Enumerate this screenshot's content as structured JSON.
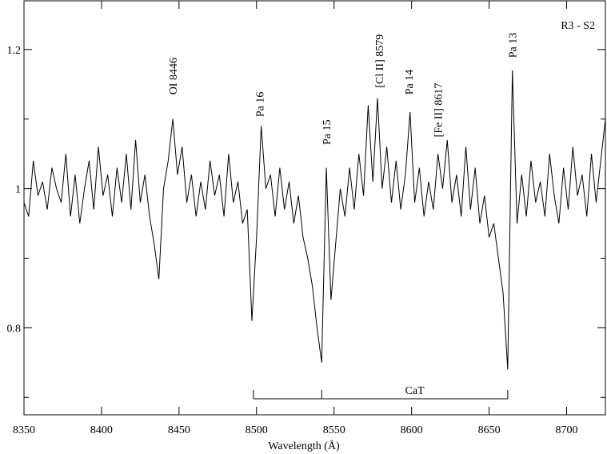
{
  "chart_data": {
    "type": "line",
    "xlabel": "Wavelength  (Å)",
    "corner_label": "R3 - S2",
    "x": [
      8350,
      8353,
      8356,
      8359,
      8362,
      8365,
      8368,
      8371,
      8374,
      8377,
      8380,
      8383,
      8386,
      8389,
      8392,
      8395,
      8398,
      8401,
      8404,
      8407,
      8410,
      8413,
      8416,
      8419,
      8422,
      8425,
      8428,
      8431,
      8434,
      8437,
      8440,
      8443,
      8446,
      8449,
      8452,
      8455,
      8458,
      8461,
      8464,
      8467,
      8470,
      8473,
      8476,
      8479,
      8482,
      8485,
      8488,
      8491,
      8494,
      8497,
      8500,
      8503,
      8506,
      8509,
      8512,
      8515,
      8518,
      8521,
      8524,
      8527,
      8530,
      8533,
      8536,
      8539,
      8542,
      8545,
      8548,
      8551,
      8554,
      8557,
      8560,
      8563,
      8566,
      8569,
      8572,
      8575,
      8578,
      8581,
      8584,
      8587,
      8590,
      8593,
      8596,
      8599,
      8602,
      8605,
      8608,
      8611,
      8614,
      8617,
      8620,
      8623,
      8626,
      8629,
      8632,
      8635,
      8638,
      8641,
      8644,
      8647,
      8650,
      8653,
      8656,
      8659,
      8662,
      8665,
      8668,
      8671,
      8674,
      8677,
      8680,
      8683,
      8686,
      8689,
      8692,
      8695,
      8698,
      8701,
      8704,
      8707,
      8710,
      8713,
      8716,
      8719,
      8722,
      8725
    ],
    "series": [
      {
        "color": "#000000",
        "values": [
          0.98,
          0.96,
          1.04,
          0.99,
          1.01,
          0.97,
          1.03,
          1.0,
          0.98,
          1.05,
          0.96,
          1.02,
          0.95,
          1.0,
          1.04,
          0.97,
          1.06,
          0.99,
          1.02,
          0.96,
          1.03,
          0.98,
          1.05,
          0.97,
          1.07,
          0.98,
          1.02,
          0.96,
          0.92,
          0.87,
          1.0,
          1.04,
          1.1,
          1.02,
          1.06,
          0.98,
          1.02,
          0.96,
          1.01,
          0.97,
          1.04,
          0.99,
          1.02,
          0.96,
          1.05,
          0.98,
          1.01,
          0.95,
          0.97,
          0.81,
          0.93,
          1.09,
          1.0,
          1.02,
          0.96,
          1.03,
          0.97,
          1.01,
          0.95,
          0.99,
          0.93,
          0.9,
          0.86,
          0.8,
          0.75,
          1.03,
          0.84,
          0.92,
          1.0,
          0.96,
          1.03,
          0.97,
          1.05,
          0.99,
          1.12,
          1.01,
          1.13,
          1.0,
          1.06,
          0.98,
          1.04,
          0.97,
          1.02,
          1.11,
          0.98,
          1.03,
          0.96,
          1.01,
          0.97,
          1.05,
          1.0,
          1.07,
          0.98,
          1.02,
          0.96,
          1.06,
          0.97,
          1.03,
          0.95,
          0.99,
          0.93,
          0.95,
          0.9,
          0.85,
          0.74,
          1.17,
          0.95,
          1.02,
          0.96,
          1.04,
          0.98,
          1.01,
          0.96,
          1.05,
          0.99,
          0.95,
          1.03,
          0.97,
          1.06,
          0.99,
          1.02,
          0.96,
          1.05,
          0.98,
          1.04,
          1.1
        ]
      }
    ],
    "xlim": [
      8350,
      8725
    ],
    "xticks": [
      8350,
      8400,
      8450,
      8500,
      8550,
      8600,
      8650,
      8700
    ],
    "ylim": [
      0.675,
      1.27
    ],
    "yticks": [
      0.8,
      1,
      1.2
    ],
    "yminor_ticks": [
      0.7,
      0.9,
      1.1
    ],
    "annotations": [
      {
        "text": "OI 8446",
        "x": 8446,
        "y": 1.135
      },
      {
        "text": "Pa 16",
        "x": 8502,
        "y": 1.103
      },
      {
        "text": "Pa 15",
        "x": 8545,
        "y": 1.063
      },
      {
        "text": "[Cl II] 8579",
        "x": 8579,
        "y": 1.145
      },
      {
        "text": "Pa 14",
        "x": 8598,
        "y": 1.135
      },
      {
        "text": "[Fe II] 8617",
        "x": 8617,
        "y": 1.074
      },
      {
        "text": "Pa 13",
        "x": 8665,
        "y": 1.188
      }
    ],
    "bracket": {
      "label": "CaT",
      "lines": [
        8498,
        8542,
        8662
      ],
      "y": 0.698
    }
  }
}
